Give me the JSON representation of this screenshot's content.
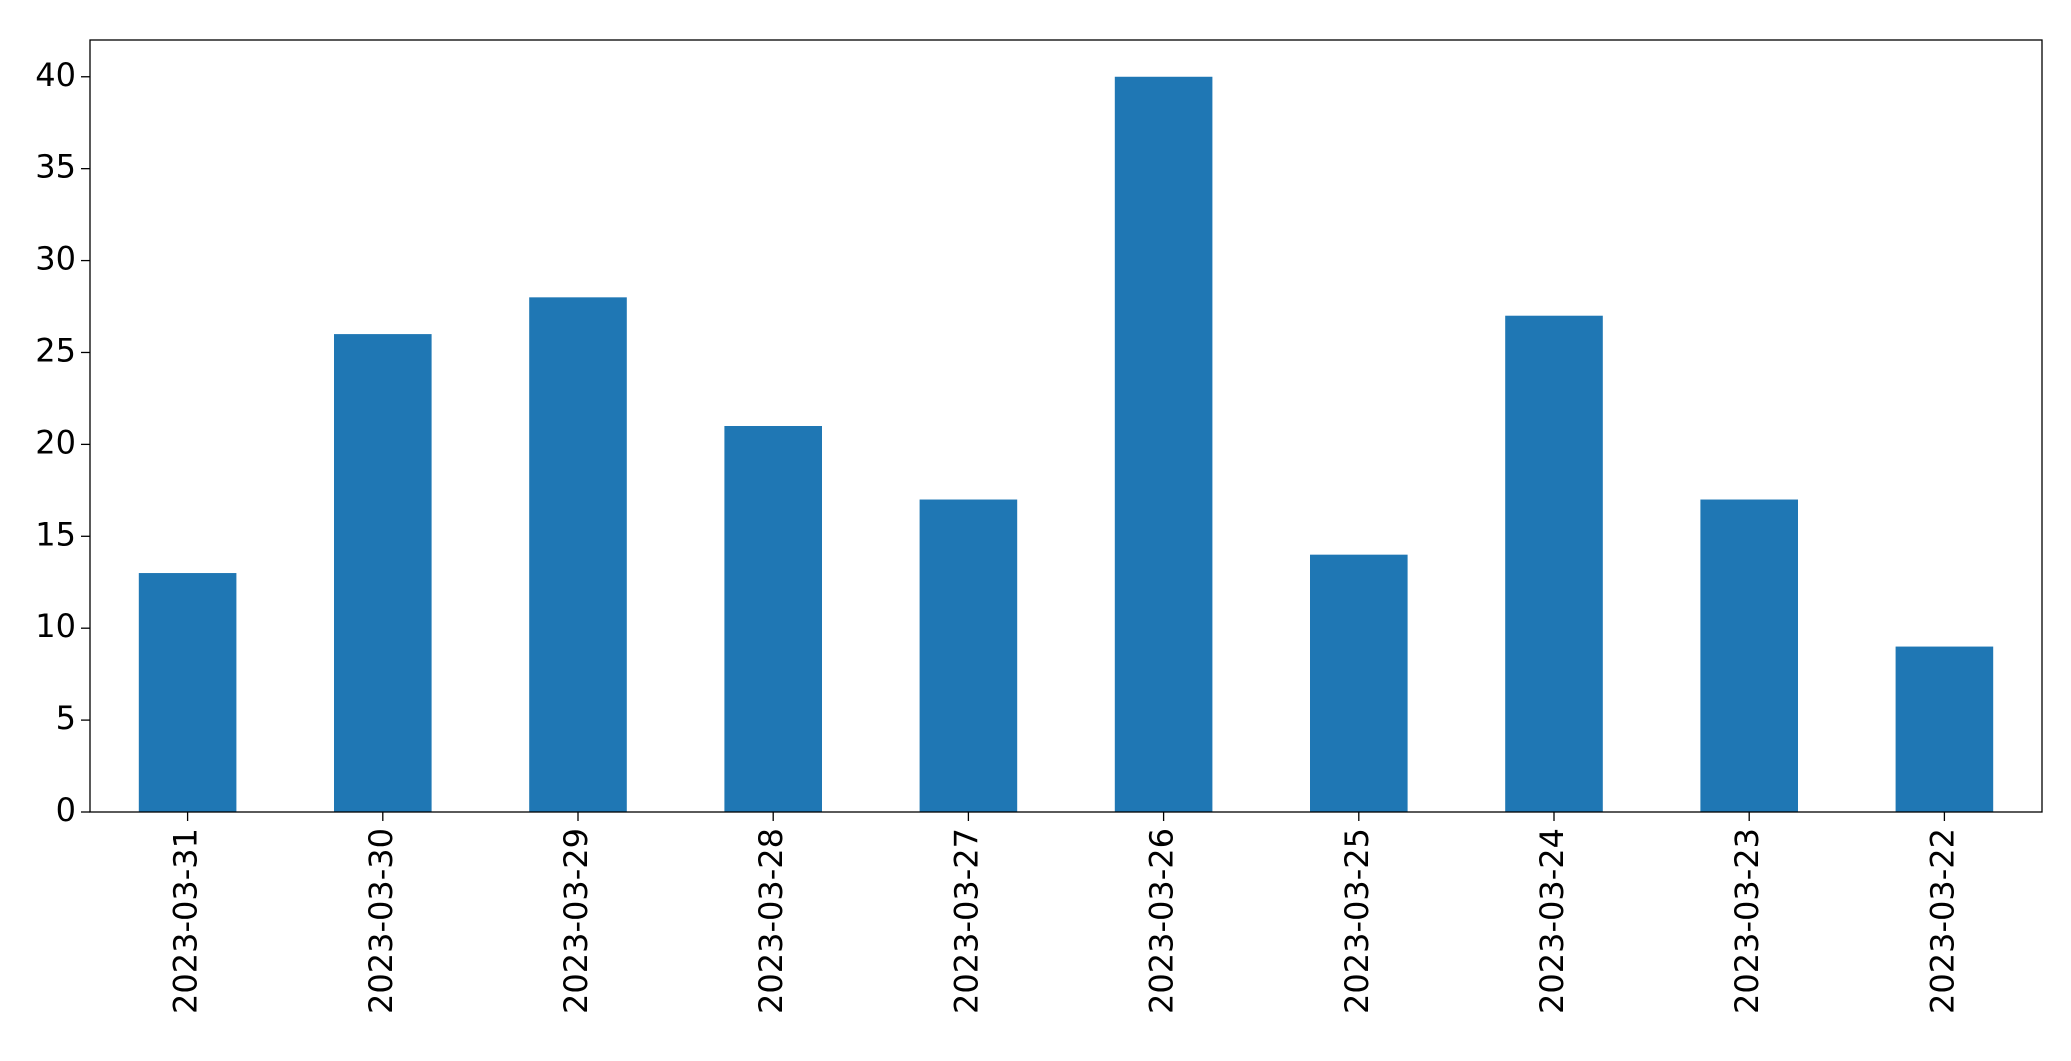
{
  "chart_data": {
    "type": "bar",
    "categories": [
      "2023-03-31",
      "2023-03-30",
      "2023-03-29",
      "2023-03-28",
      "2023-03-27",
      "2023-03-26",
      "2023-03-25",
      "2023-03-24",
      "2023-03-23",
      "2023-03-22"
    ],
    "values": [
      13,
      26,
      28,
      21,
      17,
      40,
      14,
      27,
      17,
      9
    ],
    "color": "#1f77b4",
    "ylim": [
      0,
      42
    ],
    "yticks": [
      0,
      5,
      10,
      15,
      20,
      25,
      30,
      35,
      40
    ],
    "grid": false
  }
}
